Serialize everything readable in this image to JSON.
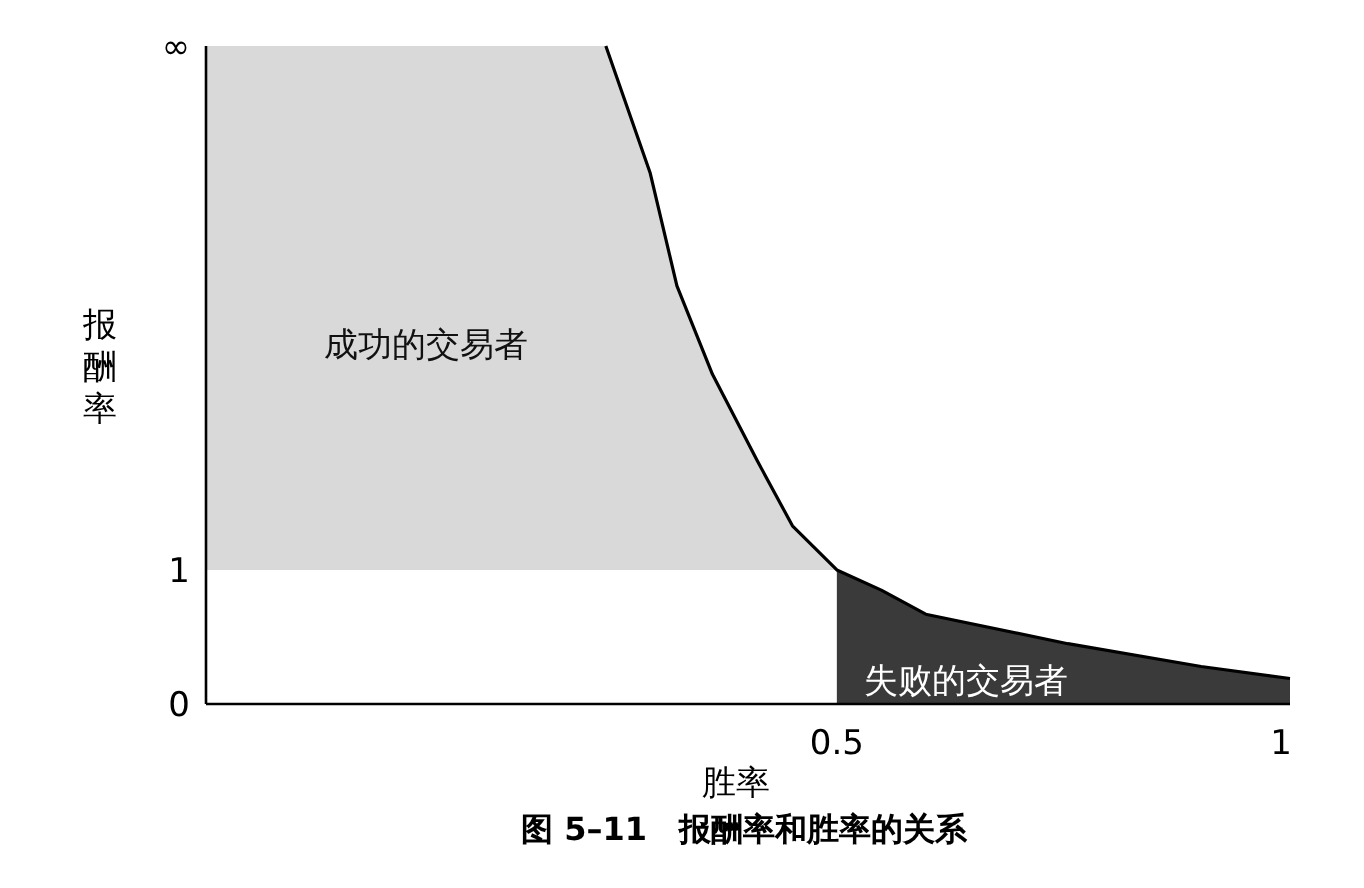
{
  "chart_data": {
    "type": "line",
    "title": "图 5–11　报酬率和胜率的关系",
    "xlabel": "胜率",
    "ylabel": "报酬率",
    "xlim": [
      -0.21,
      1.01
    ],
    "xticks": [
      0.5,
      1
    ],
    "ylim": [
      0,
      4.91
    ],
    "yticks": [
      0,
      1,
      {
        "value": 4.91,
        "label": "∞"
      }
    ],
    "grid": false,
    "series": [
      {
        "type": "area",
        "color": "#3a3a3a",
        "x": [
          0.5,
          0.55,
          0.6,
          0.76,
          0.91,
          1.01
        ],
        "values": [
          1,
          0.85,
          0.67,
          0.45,
          0.28,
          0.19
        ]
      },
      {
        "color": "#000000",
        "x": [
          0.24,
          0.29,
          0.32,
          0.36,
          0.41,
          0.45,
          0.5,
          0.55,
          0.6,
          0.76,
          0.91,
          1.01
        ],
        "values": [
          4.91,
          3.96,
          3.12,
          2.46,
          1.82,
          1.33,
          1,
          0.85,
          0.67,
          0.45,
          0.28,
          0.19
        ]
      }
    ],
    "bands": [
      {
        "axis": "y",
        "from": 1,
        "to": 4.91,
        "color": "#d9d9d9"
      }
    ],
    "annotations": [
      "成功的交易者",
      "失败的交易者"
    ]
  }
}
